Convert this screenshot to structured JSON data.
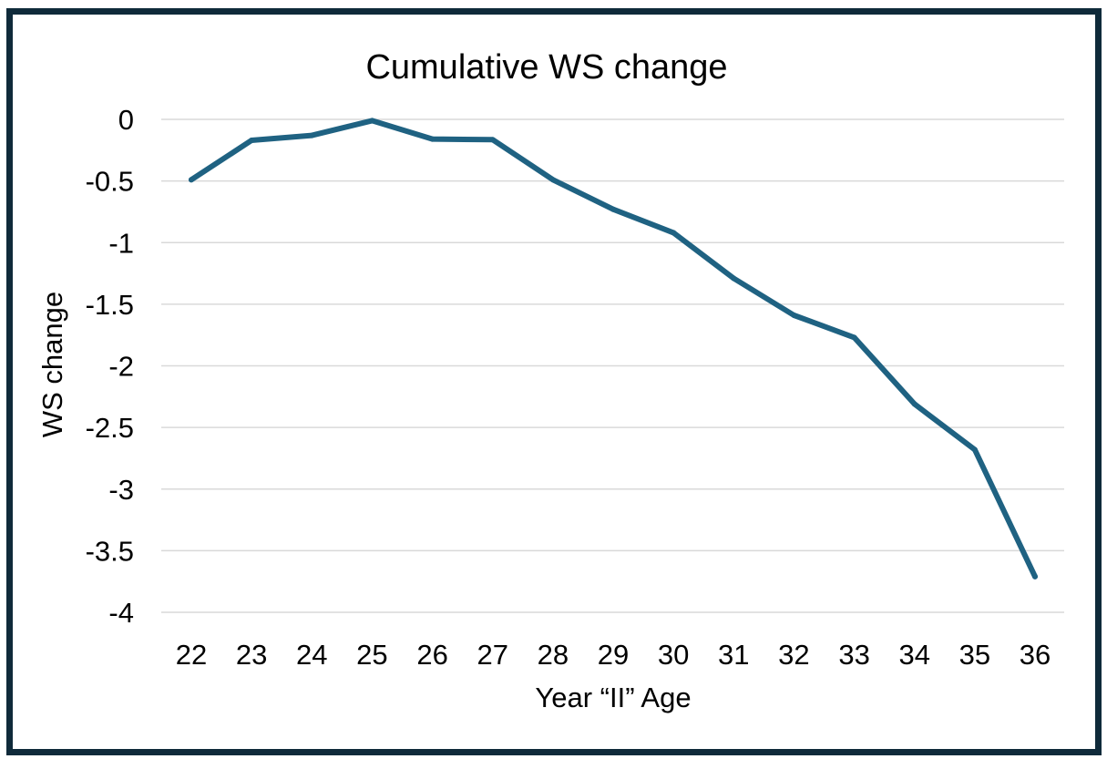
{
  "colors": {
    "frame": "#0f2a3a",
    "series": "#1f6282",
    "grid": "#d9d9d9"
  },
  "chart_data": {
    "type": "line",
    "title": "Cumulative WS change",
    "xlabel": "Year “II” Age",
    "ylabel": "WS change",
    "ylim": [
      -4,
      0
    ],
    "yticks": [
      0,
      -0.5,
      -1,
      -1.5,
      -2,
      -2.5,
      -3,
      -3.5,
      -4
    ],
    "ytick_labels": [
      "0",
      "-0.5",
      "-1",
      "-1.5",
      "-2",
      "-2.5",
      "-3",
      "-3.5",
      "-4"
    ],
    "grid": true,
    "legend": "none",
    "categories": [
      "22",
      "23",
      "24",
      "25",
      "26",
      "27",
      "28",
      "29",
      "30",
      "31",
      "32",
      "33",
      "34",
      "35",
      "36"
    ],
    "series": [
      {
        "values": [
          -0.49,
          -0.17,
          -0.13,
          -0.01,
          -0.16,
          -0.165,
          -0.49,
          -0.73,
          -0.92,
          -1.29,
          -1.59,
          -1.77,
          -2.31,
          -2.68,
          -3.71
        ]
      }
    ]
  }
}
